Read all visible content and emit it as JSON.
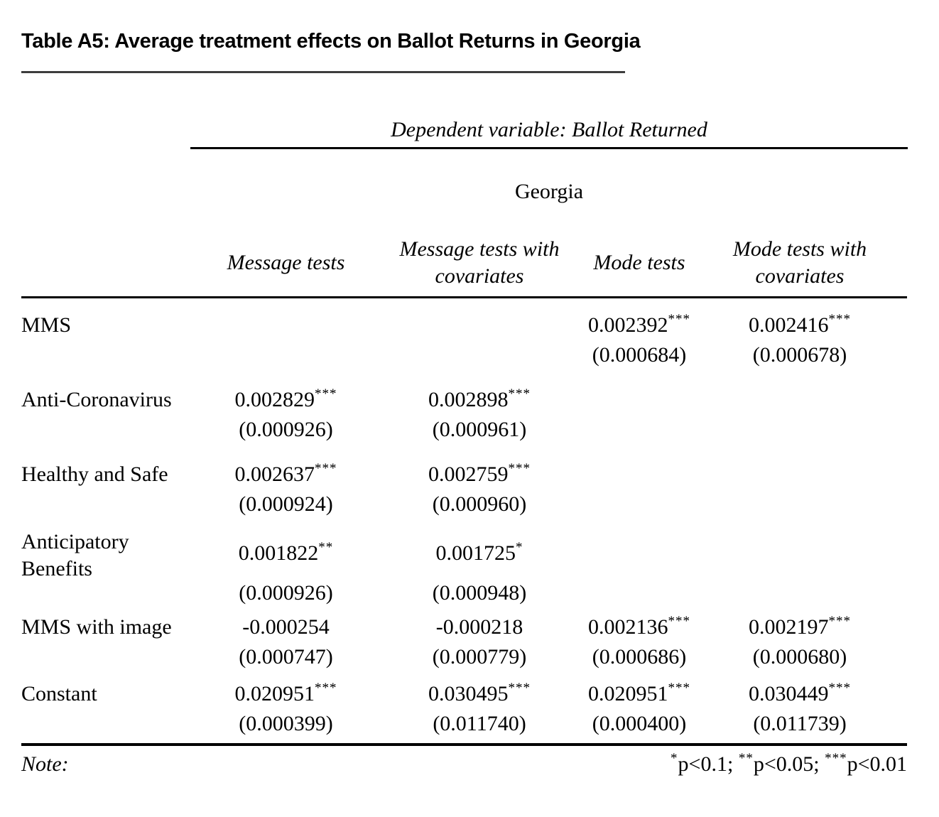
{
  "title": "Table A5: Average treatment effects on Ballot Returns in Georgia",
  "table": {
    "dependent_variable": "Dependent variable: Ballot Returned",
    "region_group": "Georgia",
    "columns": [
      "Message tests",
      "Message tests with covariates",
      "Mode tests",
      "Mode tests with covariates"
    ],
    "rows": [
      {
        "label": "MMS",
        "cells": [
          {
            "coef": "",
            "stars": "",
            "se": ""
          },
          {
            "coef": "",
            "stars": "",
            "se": ""
          },
          {
            "coef": "0.002392",
            "stars": "***",
            "se": "(0.000684)"
          },
          {
            "coef": "0.002416",
            "stars": "***",
            "se": "(0.000678)"
          }
        ]
      },
      {
        "label": "Anti-Coronavirus",
        "cells": [
          {
            "coef": "0.002829",
            "stars": "***",
            "se": "(0.000926)"
          },
          {
            "coef": "0.002898",
            "stars": "***",
            "se": "(0.000961)"
          },
          {
            "coef": "",
            "stars": "",
            "se": ""
          },
          {
            "coef": "",
            "stars": "",
            "se": ""
          }
        ]
      },
      {
        "label": "Healthy and Safe",
        "cells": [
          {
            "coef": "0.002637",
            "stars": "***",
            "se": "(0.000924)"
          },
          {
            "coef": "0.002759",
            "stars": "***",
            "se": "(0.000960)"
          },
          {
            "coef": "",
            "stars": "",
            "se": ""
          },
          {
            "coef": "",
            "stars": "",
            "se": ""
          }
        ]
      },
      {
        "label": "Anticipatory Benefits",
        "cells": [
          {
            "coef": "0.001822",
            "stars": "**",
            "se": "(0.000926)"
          },
          {
            "coef": "0.001725",
            "stars": "*",
            "se": "(0.000948)"
          },
          {
            "coef": "",
            "stars": "",
            "se": ""
          },
          {
            "coef": "",
            "stars": "",
            "se": ""
          }
        ]
      },
      {
        "label": "MMS with image",
        "cells": [
          {
            "coef": "-0.000254",
            "stars": "",
            "se": "(0.000747)"
          },
          {
            "coef": "-0.000218",
            "stars": "",
            "se": "(0.000779)"
          },
          {
            "coef": "0.002136",
            "stars": "***",
            "se": "(0.000686)"
          },
          {
            "coef": "0.002197",
            "stars": "***",
            "se": "(0.000680)"
          }
        ]
      },
      {
        "label": "Constant",
        "cells": [
          {
            "coef": "0.020951",
            "stars": "***",
            "se": "(0.000399)"
          },
          {
            "coef": "0.030495",
            "stars": "***",
            "se": "(0.011740)"
          },
          {
            "coef": "0.020951",
            "stars": "***",
            "se": "(0.000400)"
          },
          {
            "coef": "0.030449",
            "stars": "***",
            "se": "(0.011739)"
          }
        ]
      }
    ],
    "note_label": "Note:",
    "legend": [
      {
        "stars": "*",
        "text": "p<0.1; "
      },
      {
        "stars": "**",
        "text": "p<0.05; "
      },
      {
        "stars": "***",
        "text": "p<0.01"
      }
    ]
  },
  "colors": {
    "background": "#ffffff",
    "text": "#000000",
    "table_rule": "#000000",
    "title_rule": "#3d3d3d"
  }
}
